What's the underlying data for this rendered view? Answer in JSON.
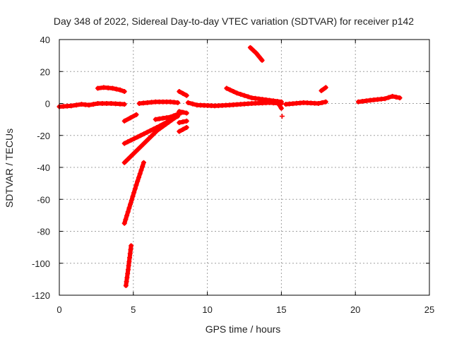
{
  "chart_data": {
    "type": "scatter",
    "title": "Day 348 of 2022, Sidereal Day-to-day VTEC variation (SDTVAR) for receiver p142",
    "xlabel": "GPS time / hours",
    "ylabel": "SDTVAR / TECUs",
    "xlim": [
      0,
      25
    ],
    "ylim": [
      -120,
      40
    ],
    "xticks": [
      0,
      5,
      10,
      15,
      20,
      25
    ],
    "yticks": [
      -120,
      -100,
      -80,
      -60,
      -40,
      -20,
      0,
      20,
      40
    ],
    "xtick_labels": [
      "0",
      "5",
      "10",
      "15",
      "20",
      "25"
    ],
    "ytick_labels": [
      "-120",
      "-100",
      "-80",
      "-60",
      "-40",
      "-20",
      "0",
      "20",
      "40"
    ],
    "grid": true,
    "marker": "+",
    "series_color": "#ff0000",
    "segments": [
      {
        "name": "baseline-a",
        "points": [
          [
            0.0,
            -2
          ],
          [
            0.8,
            -1.5
          ],
          [
            1.5,
            -0.5
          ],
          [
            2.0,
            -1
          ],
          [
            2.6,
            0
          ],
          [
            3.5,
            0
          ],
          [
            4.4,
            -0.5
          ]
        ]
      },
      {
        "name": "arc-2.6",
        "points": [
          [
            2.6,
            9.5
          ],
          [
            3.0,
            10
          ],
          [
            3.6,
            9.5
          ],
          [
            4.1,
            8.5
          ],
          [
            4.4,
            7.5
          ]
        ]
      },
      {
        "name": "short-4.4-a",
        "points": [
          [
            4.4,
            -11
          ],
          [
            4.8,
            -9
          ],
          [
            5.2,
            -7
          ]
        ]
      },
      {
        "name": "long-4.4-b",
        "points": [
          [
            4.4,
            -25
          ],
          [
            5.5,
            -20
          ],
          [
            6.8,
            -14
          ],
          [
            8.0,
            -8
          ]
        ]
      },
      {
        "name": "long-4.4-c",
        "points": [
          [
            4.4,
            -37
          ],
          [
            5.5,
            -27
          ],
          [
            6.6,
            -17
          ],
          [
            7.8,
            -9
          ]
        ]
      },
      {
        "name": "steep-4.4",
        "points": [
          [
            4.4,
            -75
          ],
          [
            4.8,
            -63
          ],
          [
            5.2,
            -51
          ],
          [
            5.7,
            -37
          ]
        ]
      },
      {
        "name": "steep-4.5",
        "points": [
          [
            4.5,
            -114
          ],
          [
            4.65,
            -104
          ],
          [
            4.85,
            -89
          ]
        ]
      },
      {
        "name": "baseline-b",
        "points": [
          [
            5.4,
            0
          ],
          [
            6.5,
            1
          ],
          [
            7.5,
            1
          ],
          [
            8.0,
            0.5
          ]
        ]
      },
      {
        "name": "short-7-a",
        "points": [
          [
            6.5,
            -10
          ],
          [
            7.5,
            -8.5
          ],
          [
            8.2,
            -6
          ]
        ]
      },
      {
        "name": "short-8.2-a",
        "points": [
          [
            8.1,
            7.5
          ],
          [
            8.6,
            5
          ]
        ]
      },
      {
        "name": "short-8.2-b",
        "points": [
          [
            8.1,
            -5
          ],
          [
            8.6,
            -6
          ]
        ]
      },
      {
        "name": "short-8.2-c",
        "points": [
          [
            8.1,
            -12
          ],
          [
            8.6,
            -11
          ]
        ]
      },
      {
        "name": "short-8.2-d",
        "points": [
          [
            8.1,
            -17.5
          ],
          [
            8.6,
            -15
          ]
        ]
      },
      {
        "name": "baseline-c",
        "points": [
          [
            8.7,
            0.5
          ],
          [
            9.3,
            -1
          ],
          [
            10.5,
            -1.5
          ],
          [
            11.5,
            -1
          ],
          [
            13.0,
            0
          ],
          [
            14.2,
            0.5
          ],
          [
            15.0,
            0
          ]
        ]
      },
      {
        "name": "arc-11.3",
        "points": [
          [
            11.3,
            9.5
          ],
          [
            12.0,
            6.5
          ],
          [
            13.0,
            3.5
          ],
          [
            14.2,
            2
          ],
          [
            15.0,
            1
          ]
        ]
      },
      {
        "name": "steep-13",
        "points": [
          [
            12.9,
            35
          ],
          [
            13.3,
            31.5
          ],
          [
            13.7,
            27
          ]
        ]
      },
      {
        "name": "short-15",
        "points": [
          [
            14.8,
            0
          ],
          [
            15.0,
            -3
          ]
        ]
      },
      {
        "name": "point-15",
        "points": [
          [
            15.05,
            -8
          ]
        ]
      },
      {
        "name": "baseline-d",
        "points": [
          [
            15.3,
            -0.5
          ],
          [
            16.5,
            0.5
          ],
          [
            17.5,
            0
          ],
          [
            18.0,
            1
          ]
        ]
      },
      {
        "name": "short-17.8",
        "points": [
          [
            17.7,
            8
          ],
          [
            18.0,
            10
          ]
        ]
      },
      {
        "name": "baseline-e",
        "points": [
          [
            20.2,
            1
          ],
          [
            21.0,
            2
          ],
          [
            22.0,
            3
          ],
          [
            22.5,
            4.5
          ],
          [
            23.0,
            3.5
          ]
        ]
      }
    ]
  }
}
